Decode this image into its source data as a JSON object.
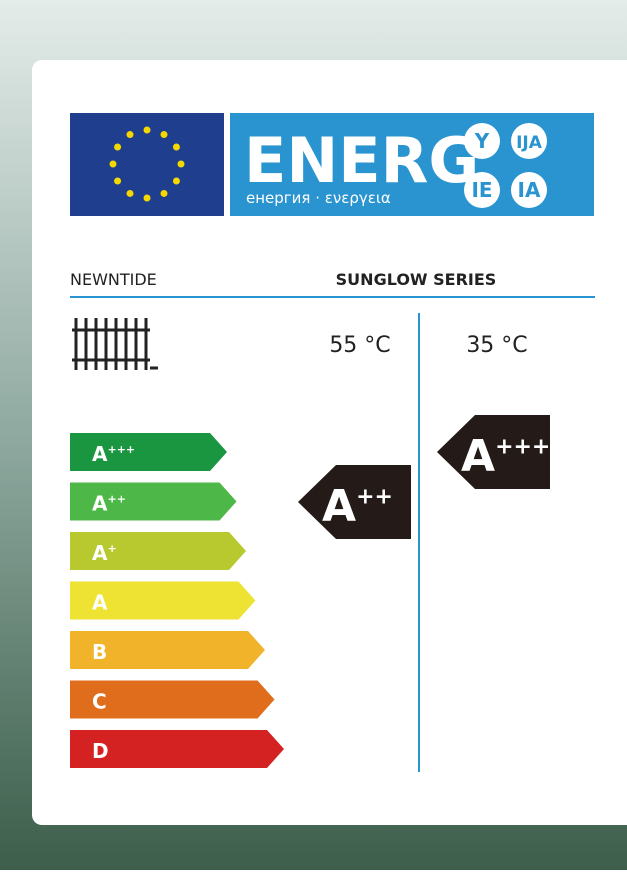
{
  "logo": {
    "word": "ENERG",
    "subtitle": "енергия · ενεργεια",
    "suffixes": [
      "Y",
      "IJA",
      "IE",
      "IA"
    ]
  },
  "supplier": "NEWNTIDE",
  "model": "SUNGLOW SERIES",
  "columns": [
    "55 °C",
    "35 °C"
  ],
  "scale": [
    {
      "letter": "A",
      "sup": "+++",
      "color": "#1a9641"
    },
    {
      "letter": "A",
      "sup": "++",
      "color": "#4db848"
    },
    {
      "letter": "A",
      "sup": "+",
      "color": "#b7c92e"
    },
    {
      "letter": "A",
      "sup": null,
      "color": "#eee333"
    },
    {
      "letter": "B",
      "sup": null,
      "color": "#f0b32a"
    },
    {
      "letter": "C",
      "sup": null,
      "color": "#e06d1c"
    },
    {
      "letter": "D",
      "sup": null,
      "color": "#d42222"
    }
  ],
  "ratings": [
    {
      "letter": "A",
      "sup": "++"
    },
    {
      "letter": "A",
      "sup": "+++"
    }
  ]
}
